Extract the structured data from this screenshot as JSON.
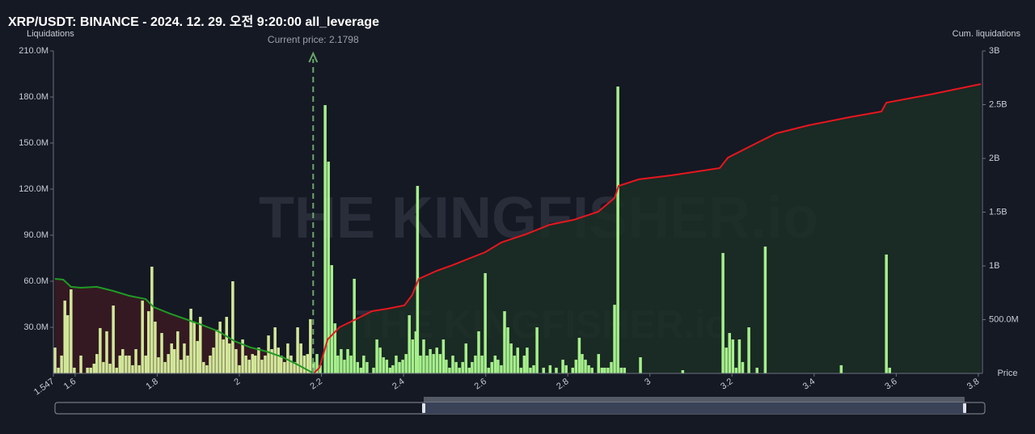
{
  "chart_data": {
    "type": "bar",
    "title": "XRP/USDT: BINANCE - 2024. 12. 29. 오전 9:20:00 all_leverage",
    "y_label": "Liquidations",
    "y2_label": "Cum. liquidations",
    "x_label": "Price",
    "annotation": "Current price: 2.1798",
    "current_price": 2.1798,
    "watermark": "THE KINGFISHER.io",
    "xlim": [
      1.547,
      3.81
    ],
    "xticks": [
      1.547,
      1.6,
      1.8,
      2,
      2.2,
      2.4,
      2.6,
      2.8,
      3,
      3.2,
      3.4,
      3.6,
      3.8
    ],
    "ylim": [
      0,
      210000000
    ],
    "yticks": [
      {
        "value": 30000000,
        "label": "30.0M"
      },
      {
        "value": 60000000,
        "label": "60.0M"
      },
      {
        "value": 90000000,
        "label": "90.0M"
      },
      {
        "value": 120000000,
        "label": "120.0M"
      },
      {
        "value": 150000000,
        "label": "150.0M"
      },
      {
        "value": 180000000,
        "label": "180.0M"
      },
      {
        "value": 210000000,
        "label": "210.0M"
      }
    ],
    "y2lim": [
      0,
      3000000000
    ],
    "y2ticks": [
      {
        "value": 500000000,
        "label": "500.0M"
      },
      {
        "value": 1000000000,
        "label": "1B"
      },
      {
        "value": 1500000000,
        "label": "1.5B"
      },
      {
        "value": 2000000000,
        "label": "2B"
      },
      {
        "value": 2500000000,
        "label": "2.5B"
      },
      {
        "value": 3000000000,
        "label": "3B"
      }
    ],
    "series": [
      {
        "type": "bar",
        "color": "#d3e89a",
        "x": [
          1.551,
          1.559,
          1.567,
          1.575,
          1.582,
          1.59,
          1.598,
          1.614,
          1.63,
          1.638,
          1.646,
          1.653,
          1.661,
          1.669,
          1.677,
          1.685,
          1.693,
          1.701,
          1.709,
          1.716,
          1.724,
          1.732,
          1.74,
          1.748,
          1.756,
          1.764,
          1.772,
          1.779,
          1.787,
          1.795,
          1.803,
          1.811,
          1.819,
          1.827,
          1.835,
          1.842,
          1.85,
          1.858,
          1.866,
          1.874,
          1.882,
          1.89,
          1.898,
          1.905,
          1.913,
          1.921,
          1.929,
          1.937,
          1.945,
          1.953,
          1.961,
          1.969,
          1.976,
          1.984,
          1.992,
          2.0,
          2.008,
          2.016,
          2.024,
          2.032,
          2.039,
          2.047,
          2.055,
          2.063,
          2.071,
          2.079,
          2.087,
          2.095,
          2.102,
          2.11,
          2.118,
          2.126,
          2.134,
          2.142,
          2.15,
          2.158,
          2.166,
          2.173
        ],
        "values": [
          16800000,
          3700000,
          11600000,
          47400000,
          37900000,
          54700000,
          3700000,
          11600000,
          3700000,
          3700000,
          6300000,
          12600000,
          29500000,
          7400000,
          27400000,
          6300000,
          44200000,
          3700000,
          11600000,
          15800000,
          11600000,
          11600000,
          5300000,
          15800000,
          5300000,
          47400000,
          11600000,
          40500000,
          69500000,
          33700000,
          10500000,
          26300000,
          7400000,
          12600000,
          19500000,
          15800000,
          27400000,
          8900000,
          19500000,
          11600000,
          42100000,
          33700000,
          21100000,
          36800000,
          7400000,
          5300000,
          11600000,
          16800000,
          28400000,
          33700000,
          22100000,
          36800000,
          19500000,
          60000000,
          15800000,
          5300000,
          22100000,
          11600000,
          8900000,
          12600000,
          11600000,
          16800000,
          8900000,
          11600000,
          24700000,
          15800000,
          30000000,
          16800000,
          11600000,
          7400000,
          19500000,
          11600000,
          7400000,
          30000000,
          19500000,
          11600000,
          12600000,
          35300000
        ]
      },
      {
        "type": "bar",
        "color": "#a6f08c",
        "x": [
          2.181,
          2.189,
          2.197,
          2.209,
          2.217,
          2.225,
          2.233,
          2.24,
          2.248,
          2.256,
          2.264,
          2.272,
          2.28,
          2.288,
          2.296,
          2.303,
          2.311,
          2.327,
          2.335,
          2.343,
          2.351,
          2.359,
          2.367,
          2.374,
          2.382,
          2.39,
          2.398,
          2.406,
          2.414,
          2.422,
          2.43,
          2.434,
          2.441,
          2.449,
          2.457,
          2.465,
          2.473,
          2.481,
          2.489,
          2.497,
          2.504,
          2.512,
          2.52,
          2.528,
          2.536,
          2.544,
          2.552,
          2.56,
          2.567,
          2.575,
          2.583,
          2.591,
          2.599,
          2.607,
          2.615,
          2.623,
          2.63,
          2.638,
          2.646,
          2.654,
          2.662,
          2.67,
          2.678,
          2.686,
          2.694,
          2.701,
          2.709,
          2.717,
          2.725,
          2.741,
          2.757,
          2.772,
          2.788,
          2.796,
          2.812,
          2.82,
          2.828,
          2.835,
          2.843,
          2.851,
          2.859,
          2.875,
          2.883,
          2.89,
          2.898,
          2.906,
          2.914,
          2.922,
          2.93,
          2.938,
          2.977,
          3.08,
          3.178,
          3.186,
          3.194,
          3.202,
          3.21,
          3.218,
          3.226,
          3.241,
          3.261,
          3.281,
          3.466,
          3.576,
          3.584
        ],
        "values": [
          7400000,
          12600000,
          5300000,
          174700000,
          137900000,
          70500000,
          32600000,
          11600000,
          15800000,
          8900000,
          15800000,
          11600000,
          61600000,
          7400000,
          3700000,
          11600000,
          7400000,
          3700000,
          22100000,
          16800000,
          10500000,
          8900000,
          3700000,
          5300000,
          11600000,
          7400000,
          8900000,
          12600000,
          37900000,
          22100000,
          27400000,
          122100000,
          11600000,
          22100000,
          11600000,
          15800000,
          12600000,
          16800000,
          12600000,
          22100000,
          8900000,
          3700000,
          11600000,
          7400000,
          3700000,
          7400000,
          19500000,
          3700000,
          7400000,
          11600000,
          27400000,
          11600000,
          65300000,
          3700000,
          7400000,
          11600000,
          8900000,
          5300000,
          40500000,
          30000000,
          19500000,
          11600000,
          16800000,
          3700000,
          11600000,
          16800000,
          3700000,
          5300000,
          30000000,
          3700000,
          5300000,
          3700000,
          8900000,
          5300000,
          3700000,
          8900000,
          23200000,
          12600000,
          8900000,
          5300000,
          3700000,
          12600000,
          3700000,
          3700000,
          3700000,
          7400000,
          44700000,
          186800000,
          3700000,
          3700000,
          10500000,
          2100000,
          78400000,
          16800000,
          26300000,
          22100000,
          3700000,
          22100000,
          7400000,
          30000000,
          3700000,
          82600000,
          5300000,
          77400000,
          3700000
        ]
      },
      {
        "type": "line",
        "axis": "y2",
        "color": "#1f9a24",
        "area": "#3a1a22",
        "x": [
          1.551,
          1.571,
          1.59,
          1.614,
          1.653,
          1.693,
          1.732,
          1.772,
          1.791,
          1.831,
          1.87,
          1.909,
          1.949,
          1.988,
          2.027,
          2.067,
          2.106,
          2.145,
          2.181
        ],
        "values": [
          880000000,
          872000000,
          805000000,
          797000000,
          805000000,
          767000000,
          722000000,
          692000000,
          617000000,
          556000000,
          504000000,
          451000000,
          391000000,
          301000000,
          241000000,
          203000000,
          150000000,
          75000000,
          0
        ]
      },
      {
        "type": "line",
        "axis": "y2",
        "color": "#e8161e",
        "area": "#1b2e25",
        "x": [
          2.181,
          2.195,
          2.215,
          2.244,
          2.284,
          2.323,
          2.362,
          2.402,
          2.421,
          2.437,
          2.481,
          2.52,
          2.559,
          2.599,
          2.638,
          2.697,
          2.756,
          2.815,
          2.874,
          2.914,
          2.924,
          2.973,
          3.052,
          3.17,
          3.19,
          3.229,
          3.268,
          3.308,
          3.387,
          3.485,
          3.564,
          3.576,
          3.682,
          3.806
        ],
        "values": [
          0,
          53000000,
          316000000,
          429000000,
          504000000,
          579000000,
          602000000,
          632000000,
          729000000,
          880000000,
          955000000,
          1008000000,
          1068000000,
          1128000000,
          1218000000,
          1293000000,
          1383000000,
          1429000000,
          1504000000,
          1632000000,
          1744000000,
          1805000000,
          1842000000,
          1910000000,
          2007000000,
          2083000000,
          2158000000,
          2233000000,
          2308000000,
          2383000000,
          2436000000,
          2519000000,
          2594000000,
          2692000000
        ]
      }
    ]
  }
}
